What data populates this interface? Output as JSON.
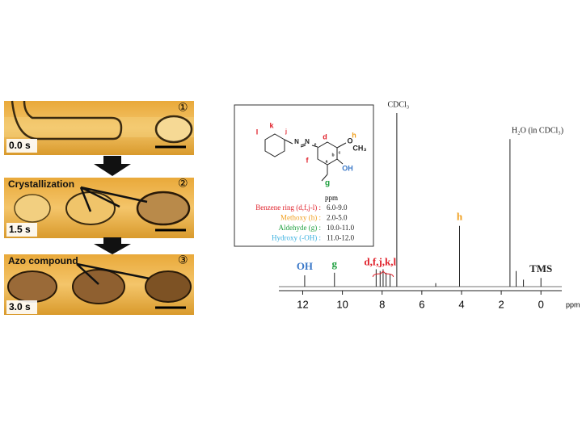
{
  "microscopy": {
    "frames": [
      {
        "number": "①",
        "time": "0.0 s"
      },
      {
        "number": "②",
        "label": "Crystallization",
        "time": "1.5 s"
      },
      {
        "number": "③",
        "label": "Azo compound",
        "time": "3.0 s"
      }
    ]
  },
  "structure": {
    "atoms": [
      {
        "text": "k",
        "color": "#e0202a"
      },
      {
        "text": "l",
        "color": "#e0202a"
      },
      {
        "text": "j",
        "color": "#e0202a"
      },
      {
        "text": "N",
        "color": "#222222"
      },
      {
        "text": "N",
        "color": "#222222"
      },
      {
        "text": "d",
        "color": "#e0202a"
      },
      {
        "text": "e",
        "color": "#222222"
      },
      {
        "text": "c",
        "color": "#222222"
      },
      {
        "text": "b",
        "color": "#222222"
      },
      {
        "text": "a",
        "color": "#222222"
      },
      {
        "text": "f",
        "color": "#e0202a"
      },
      {
        "text": "O",
        "color": "#222222"
      },
      {
        "text": "h",
        "color": "#f0a020"
      },
      {
        "text": "CH₃",
        "color": "#222222"
      },
      {
        "text": "OH",
        "color": "#3a78c8"
      },
      {
        "text": "g",
        "color": "#20a040"
      }
    ],
    "table": {
      "header": "ppm",
      "rows": [
        {
          "group": "Benzene ring (d,f,j-l) :",
          "range": "6.0-9.0",
          "color": "#e0202a"
        },
        {
          "group": "Methoxy (h) :",
          "range": "2.0-5.0",
          "color": "#f0a020"
        },
        {
          "group": "Aldehyde (g) :",
          "range": "10.0-11.0",
          "color": "#20a040"
        },
        {
          "group": "Hydroxy (-OH) :",
          "range": "11.0-12.0",
          "color": "#3ab0e0"
        }
      ]
    }
  },
  "spectrum": {
    "xlim": [
      13.2,
      -1.05
    ],
    "xticks": [
      12,
      10,
      8,
      6,
      4,
      2,
      0
    ],
    "xlabel": "ppm",
    "peaks": [
      {
        "ppm": 11.9,
        "intensity": 6.5,
        "label": "OH",
        "label_color": "#3a78c8"
      },
      {
        "ppm": 10.4,
        "intensity": 8,
        "label": "g",
        "label_color": "#20a040"
      },
      {
        "ppm": 8.3,
        "intensity": 10
      },
      {
        "ppm": 8.1,
        "intensity": 9,
        "label": "d,f,j,k,l",
        "label_color": "#e0202a"
      },
      {
        "ppm": 7.95,
        "intensity": 10
      },
      {
        "ppm": 7.8,
        "intensity": 8
      },
      {
        "ppm": 7.6,
        "intensity": 7
      },
      {
        "ppm": 7.26,
        "intensity": 100,
        "label": "CDCl₃",
        "label_color": "#222222"
      },
      {
        "ppm": 5.3,
        "intensity": 2
      },
      {
        "ppm": 4.1,
        "intensity": 35,
        "label": "h",
        "label_color": "#f0a020"
      },
      {
        "ppm": 1.56,
        "intensity": 85,
        "label": "H₂O (in CDCl₃)",
        "label_color": "#222222"
      },
      {
        "ppm": 1.25,
        "intensity": 9
      },
      {
        "ppm": 0.88,
        "intensity": 4
      },
      {
        "ppm": 0,
        "intensity": 5,
        "label": "TMS",
        "label_color": "#222222"
      }
    ]
  }
}
